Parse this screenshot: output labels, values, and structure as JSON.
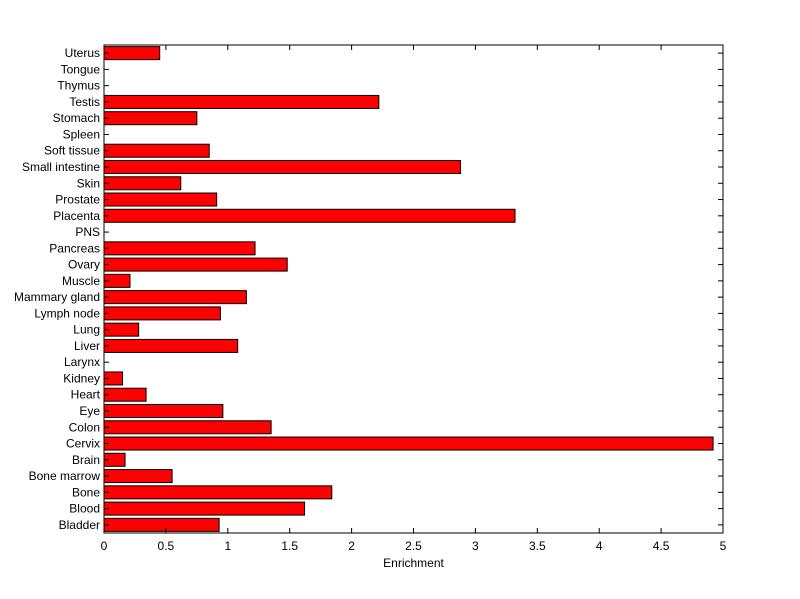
{
  "chart_data": {
    "type": "bar",
    "orientation": "horizontal",
    "categories": [
      "Bladder",
      "Blood",
      "Bone",
      "Bone marrow",
      "Brain",
      "Cervix",
      "Colon",
      "Eye",
      "Heart",
      "Kidney",
      "Larynx",
      "Liver",
      "Lung",
      "Lymph node",
      "Mammary gland",
      "Muscle",
      "Ovary",
      "Pancreas",
      "PNS",
      "Placenta",
      "Prostate",
      "Skin",
      "Small intestine",
      "Soft tissue",
      "Spleen",
      "Stomach",
      "Testis",
      "Thymus",
      "Tongue",
      "Uterus"
    ],
    "values": [
      0.93,
      1.62,
      1.84,
      0.55,
      0.17,
      4.92,
      1.35,
      0.96,
      0.34,
      0.15,
      0,
      1.08,
      0.28,
      0.94,
      1.15,
      0.21,
      1.48,
      1.22,
      0,
      3.32,
      0.91,
      0.62,
      2.88,
      0.85,
      0,
      0.75,
      2.22,
      0,
      0,
      0.45
    ],
    "xlabel": "Enrichment",
    "ylabel": "",
    "xlim": [
      0,
      5
    ],
    "xticks": [
      "0",
      "0.5",
      "1",
      "1.5",
      "2",
      "2.5",
      "3",
      "3.5",
      "4",
      "4.5",
      "5"
    ],
    "grid": false,
    "bar_color": "#ff0000"
  }
}
